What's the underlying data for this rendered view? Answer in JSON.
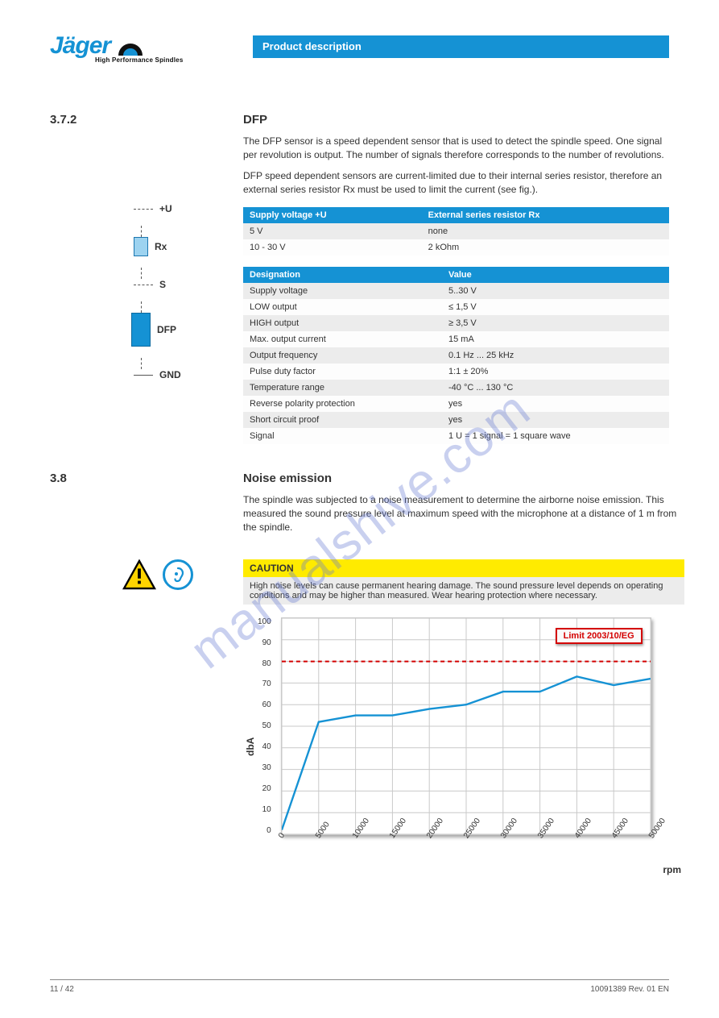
{
  "header": {
    "logo_word": "Jäger",
    "logo_sub": "High Performance Spindles",
    "bar_title": "Product description"
  },
  "sec_dfp": {
    "num": "3.7.2",
    "title": "DFP",
    "p1": "The DFP sensor is a speed dependent sensor that is used to detect the spindle speed. One signal per revolution is output. The number of signals therefore corresponds to the number of revolutions.",
    "p2": "DFP speed dependent sensors are current-limited due to their internal series resistor, therefore an external series resistor Rx must be used to limit the current (see fig.)."
  },
  "circuit": {
    "u": "+U",
    "rx": "Rx",
    "s": "S",
    "dfp": "DFP",
    "gnd": "GND"
  },
  "table_res": {
    "headers": [
      "Supply voltage +U",
      "External series resistor Rx"
    ],
    "rows": [
      [
        "5 V",
        "none"
      ],
      [
        "10 - 30 V",
        "2 kOhm"
      ]
    ]
  },
  "table_spec": {
    "headers": [
      "Designation",
      "Value"
    ],
    "rows": [
      [
        "Supply voltage",
        "5..30 V"
      ],
      [
        "LOW output",
        "≤ 1,5 V"
      ],
      [
        "HIGH output",
        "≥ 3,5 V"
      ],
      [
        "Max. output current",
        "15 mA"
      ],
      [
        "Output frequency",
        "0.1 Hz ... 25 kHz"
      ],
      [
        "Pulse duty factor",
        "1:1 ± 20%"
      ],
      [
        "Temperature range",
        "-40 °C ... 130 °C"
      ],
      [
        "Reverse polarity protection",
        "yes"
      ],
      [
        "Short circuit proof",
        "yes"
      ],
      [
        "Signal",
        "1 U = 1 signal = 1 square wave"
      ]
    ]
  },
  "sec_noise": {
    "num": "3.8",
    "title": "Noise emission",
    "p1": "The spindle was subjected to a noise measurement to determine the airborne noise emission. This measured the sound pressure level at maximum speed with the microphone at a distance of 1 m from the spindle.",
    "caution_head": "CAUTION",
    "caution_sub": "High noise levels can cause permanent hearing damage. The sound pressure level depends on operating conditions and may be higher than measured. Wear hearing protection where necessary."
  },
  "chart": {
    "type": "line",
    "ylabel": "dbA",
    "xlabel": "rpm",
    "ylim": [
      0,
      100
    ],
    "ytick_step": 10,
    "xlim": [
      0,
      50000
    ],
    "xtick_step": 5000,
    "xticks": [
      0,
      5000,
      10000,
      15000,
      20000,
      25000,
      30000,
      35000,
      40000,
      45000,
      50000
    ],
    "yticks": [
      0,
      10,
      20,
      30,
      40,
      50,
      60,
      70,
      80,
      90,
      100
    ],
    "limit_value": 80,
    "limit_label": "Limit 2003/10/EG",
    "limit_color": "#d40000",
    "line_color": "#1592d4",
    "line_width": 2.4,
    "bg_color": "#ffffff",
    "grid_color": "#c9c9c9",
    "data": [
      {
        "x": 0,
        "y": 2
      },
      {
        "x": 5000,
        "y": 52
      },
      {
        "x": 10000,
        "y": 55
      },
      {
        "x": 15000,
        "y": 55
      },
      {
        "x": 20000,
        "y": 58
      },
      {
        "x": 25000,
        "y": 60
      },
      {
        "x": 30000,
        "y": 66
      },
      {
        "x": 35000,
        "y": 66
      },
      {
        "x": 40000,
        "y": 73
      },
      {
        "x": 45000,
        "y": 69
      },
      {
        "x": 50000,
        "y": 72
      }
    ]
  },
  "watermark": "manualshive.com",
  "footer": {
    "left": "11 / 42",
    "right": "10091389 Rev. 01 EN"
  }
}
